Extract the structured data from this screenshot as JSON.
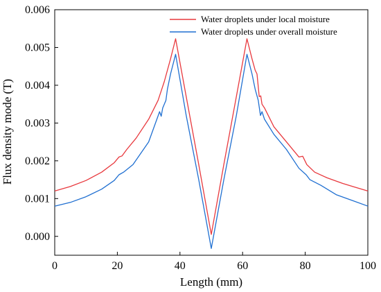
{
  "chart_data": {
    "type": "line",
    "xlabel": "Length (mm)",
    "ylabel": "Flux density mode (T)",
    "xlim": [
      0,
      100
    ],
    "ylim": [
      -0.0005,
      0.006
    ],
    "x_ticks": [
      "0",
      "20",
      "40",
      "60",
      "80",
      "100"
    ],
    "y_ticks": [
      "0.000",
      "0.001",
      "0.002",
      "0.003",
      "0.004",
      "0.005",
      "0.006"
    ],
    "x_tick_values": [
      0,
      20,
      40,
      60,
      80,
      100
    ],
    "y_tick_values": [
      0,
      0.001,
      0.002,
      0.003,
      0.004,
      0.005,
      0.006
    ],
    "legend_position": "top-right",
    "grid": false,
    "series": [
      {
        "name": "Water droplets under local moisture",
        "color": "#e8383d",
        "x": [
          0,
          5,
          10,
          15,
          19,
          20.5,
          21.5,
          23,
          26,
          30,
          33,
          35,
          37,
          38.6,
          42,
          46,
          50,
          54,
          58,
          61.4,
          63,
          64,
          64.6,
          65.3,
          65.8,
          66.2,
          67,
          70,
          74,
          78,
          79.2,
          80.5,
          83,
          87,
          92,
          96,
          100
        ],
        "y": [
          0.0012,
          0.00132,
          0.00148,
          0.0017,
          0.00195,
          0.0021,
          0.00213,
          0.0023,
          0.0026,
          0.0031,
          0.0036,
          0.0041,
          0.0047,
          0.00523,
          0.0037,
          0.0019,
          5e-05,
          0.0019,
          0.0037,
          0.00523,
          0.0047,
          0.0044,
          0.0043,
          0.0037,
          0.00372,
          0.0035,
          0.0034,
          0.0029,
          0.0025,
          0.0021,
          0.00212,
          0.0019,
          0.0017,
          0.00155,
          0.0014,
          0.0013,
          0.0012
        ]
      },
      {
        "name": "Water droplets under overall moisture",
        "color": "#1f6fd1",
        "x": [
          0,
          5,
          10,
          15,
          19,
          20.5,
          22,
          25,
          30,
          33.5,
          34,
          34.5,
          35.5,
          36,
          37,
          38.6,
          42,
          46,
          50,
          54,
          58,
          61.4,
          63,
          64,
          65,
          65.7,
          66.2,
          67,
          70,
          74,
          78,
          80.3,
          81.5,
          85,
          90,
          95,
          100
        ],
        "y": [
          0.0008,
          0.0009,
          0.00105,
          0.00125,
          0.00148,
          0.00163,
          0.0017,
          0.0019,
          0.0025,
          0.0033,
          0.00318,
          0.0034,
          0.0036,
          0.0039,
          0.0043,
          0.00482,
          0.0032,
          0.0015,
          -0.00032,
          0.0015,
          0.0032,
          0.00482,
          0.0043,
          0.0039,
          0.0036,
          0.0032,
          0.0033,
          0.0031,
          0.0027,
          0.0023,
          0.0018,
          0.00163,
          0.0015,
          0.00135,
          0.0011,
          0.00095,
          0.0008
        ]
      }
    ]
  }
}
